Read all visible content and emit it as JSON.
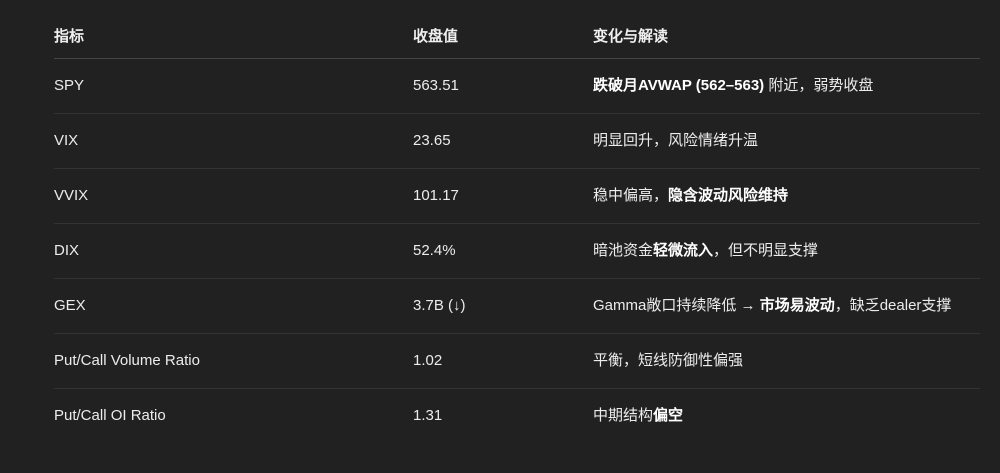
{
  "table": {
    "headers": [
      "指标",
      "收盘值",
      "变化与解读"
    ],
    "rows": [
      {
        "metric": "SPY",
        "value": "563.51",
        "note": [
          {
            "t": "跌破月AVWAP (562–563)",
            "b": true
          },
          {
            "t": " 附近，弱势收盘",
            "b": false
          }
        ]
      },
      {
        "metric": "VIX",
        "value": "23.65",
        "note": [
          {
            "t": "明显回升，风险情绪升温",
            "b": false
          }
        ]
      },
      {
        "metric": "VVIX",
        "value": "101.17",
        "note": [
          {
            "t": "稳中偏高，",
            "b": false
          },
          {
            "t": "隐含波动风险维持",
            "b": true
          }
        ]
      },
      {
        "metric": "DIX",
        "value": "52.4%",
        "note": [
          {
            "t": "暗池资金",
            "b": false
          },
          {
            "t": "轻微流入",
            "b": true
          },
          {
            "t": "，但不明显支撑",
            "b": false
          }
        ]
      },
      {
        "metric": "GEX",
        "value": "3.7B (↓)",
        "note": [
          {
            "t": "Gamma敞口持续降低 → ",
            "b": false
          },
          {
            "t": "市场易波动",
            "b": true
          },
          {
            "t": "，缺乏dealer支撑",
            "b": false
          }
        ]
      },
      {
        "metric": "Put/Call Volume Ratio",
        "value": "1.02",
        "note": [
          {
            "t": "平衡，短线防御性偏强",
            "b": false
          }
        ]
      },
      {
        "metric": "Put/Call OI Ratio",
        "value": "1.31",
        "note": [
          {
            "t": "中期结构",
            "b": false
          },
          {
            "t": "偏空",
            "b": true
          }
        ]
      }
    ]
  }
}
